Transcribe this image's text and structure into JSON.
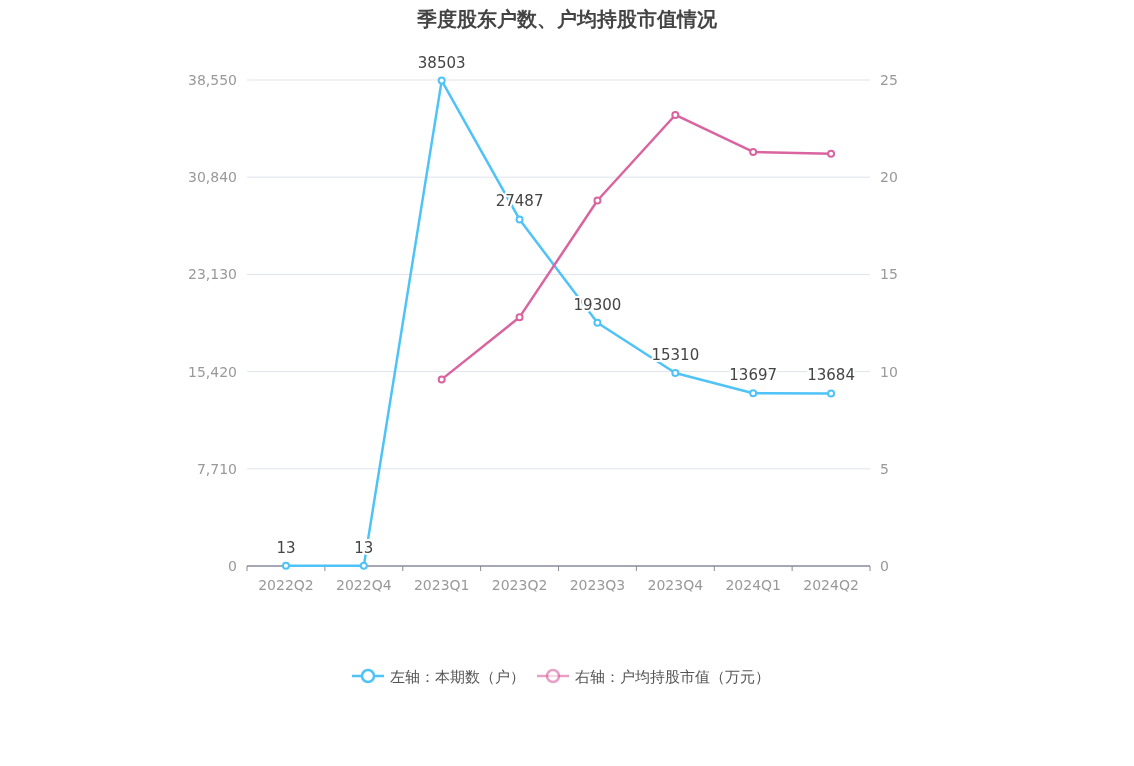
{
  "chart_data": {
    "type": "line",
    "title": "季度股东户数、户均持股市值情况",
    "categories": [
      "2022Q2",
      "2022Q4",
      "2023Q1",
      "2023Q2",
      "2023Q3",
      "2023Q4",
      "2024Q1",
      "2024Q2"
    ],
    "series": [
      {
        "name": "左轴：本期数（户）",
        "color": "#4fc3f7",
        "values": [
          13,
          13,
          38503,
          27487,
          19300,
          15310,
          13697,
          13684
        ],
        "value_labels": [
          "13",
          "13",
          "38503",
          "27487",
          "19300",
          "15310",
          "13697",
          "13684"
        ]
      },
      {
        "name": "右轴：户均持股市值（万元）",
        "color": "#d9649f",
        "axis": "y2",
        "values": [
          null,
          null,
          9.6,
          12.8,
          18.8,
          23.2,
          21.3,
          21.2
        ]
      }
    ],
    "ylim": [
      0,
      38550
    ],
    "yticks": [
      0,
      {
        "value": 7710,
        "label": "7,710"
      },
      {
        "value": 15420,
        "label": "15,420"
      },
      {
        "value": 23130,
        "label": "23,130"
      },
      {
        "value": 30840,
        "label": "30,840"
      },
      {
        "value": 38550,
        "label": "38,550"
      }
    ],
    "y2lim": [
      0,
      25
    ],
    "y2ticks": [
      0,
      5,
      10,
      15,
      20,
      25
    ],
    "grid": "y",
    "legend": "bottom",
    "marker": "circle",
    "line_style": "solid"
  }
}
